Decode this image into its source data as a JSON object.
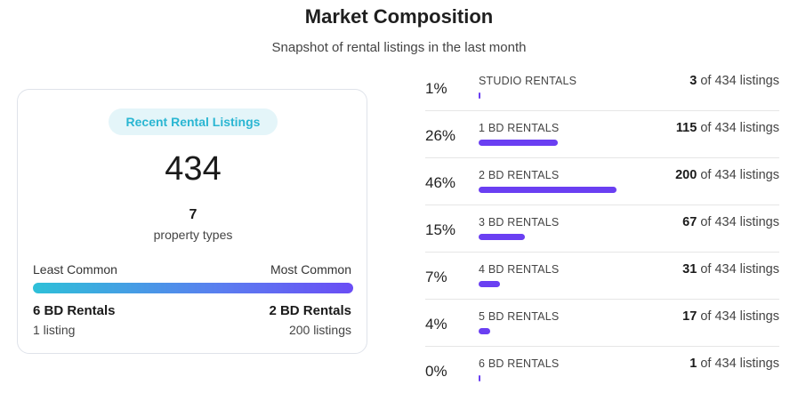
{
  "header": {
    "title": "Market Composition",
    "subtitle": "Snapshot of rental listings in the last month"
  },
  "summary": {
    "badge": "Recent Rental Listings",
    "total_listings": "434",
    "property_types_count": "7",
    "property_types_label": "property types",
    "least_common_label": "Least Common",
    "most_common_label": "Most Common",
    "least_common_name": "6 BD Rentals",
    "least_common_count": "1 listing",
    "most_common_name": "2 BD Rentals",
    "most_common_count": "200 listings",
    "gradient_colors": [
      "#2ec0d8",
      "#5b7cf0",
      "#6a4df5"
    ]
  },
  "composition": {
    "total": 434,
    "of_label": "of 434 listings",
    "bar_color": "#6a3ff2",
    "items": [
      {
        "percent": "1%",
        "label": "STUDIO RENTALS",
        "count": "3",
        "value": 3
      },
      {
        "percent": "26%",
        "label": "1 BD RENTALS",
        "count": "115",
        "value": 115
      },
      {
        "percent": "46%",
        "label": "2 BD RENTALS",
        "count": "200",
        "value": 200
      },
      {
        "percent": "15%",
        "label": "3 BD RENTALS",
        "count": "67",
        "value": 67
      },
      {
        "percent": "7%",
        "label": "4 BD RENTALS",
        "count": "31",
        "value": 31
      },
      {
        "percent": "4%",
        "label": "5 BD RENTALS",
        "count": "17",
        "value": 17
      },
      {
        "percent": "0%",
        "label": "6 BD RENTALS",
        "count": "1",
        "value": 1
      }
    ]
  }
}
